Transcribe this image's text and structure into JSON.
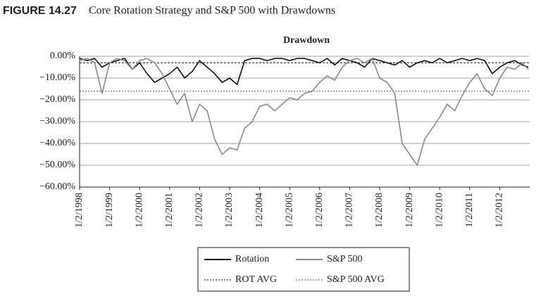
{
  "caption": {
    "label": "FIGURE 14.27",
    "text": "Core Rotation Strategy and S&P 500 with Drawdowns"
  },
  "chart_data": {
    "type": "line",
    "title": "Drawdown",
    "x": [
      1998,
      1998.25,
      1998.5,
      1998.75,
      1999,
      1999.25,
      1999.5,
      1999.75,
      2000,
      2000.25,
      2000.5,
      2000.75,
      2001,
      2001.25,
      2001.5,
      2001.75,
      2002,
      2002.25,
      2002.5,
      2002.75,
      2003,
      2003.25,
      2003.5,
      2003.75,
      2004,
      2004.25,
      2004.5,
      2004.75,
      2005,
      2005.25,
      2005.5,
      2005.75,
      2006,
      2006.25,
      2006.5,
      2006.75,
      2007,
      2007.25,
      2007.5,
      2007.75,
      2008,
      2008.25,
      2008.5,
      2008.75,
      2009,
      2009.25,
      2009.5,
      2009.75,
      2010,
      2010.25,
      2010.5,
      2010.75,
      2011,
      2011.25,
      2011.5,
      2011.75,
      2012,
      2012.25,
      2012.5,
      2012.75,
      2012.95
    ],
    "series": [
      {
        "name": "Rotation",
        "color": "#111111",
        "values": [
          -1,
          -2,
          -1,
          -5,
          -3,
          -2,
          -1,
          -6,
          -3,
          -8,
          -12,
          -10,
          -8,
          -5,
          -10,
          -7,
          -2,
          -5,
          -8,
          -12,
          -10,
          -13,
          -2,
          -1,
          -1,
          -2,
          -1,
          -1,
          -2,
          -1,
          -1,
          -2,
          -3,
          -1,
          -4,
          -1,
          -2,
          -3,
          -5,
          -1,
          -2,
          -3,
          -4,
          -2,
          -5,
          -3,
          -2,
          -3,
          -1,
          -3,
          -2,
          -1,
          -2,
          -1,
          -2,
          -8,
          -5,
          -3,
          -2,
          -4,
          -5
        ]
      },
      {
        "name": "S&P 500",
        "color": "#8a8a8a",
        "values": [
          -2,
          -1,
          -3,
          -17,
          -3,
          -1,
          -2,
          -6,
          -2,
          -1,
          -3,
          -8,
          -15,
          -22,
          -17,
          -30,
          -22,
          -25,
          -38,
          -45,
          -42,
          -43,
          -33,
          -30,
          -23,
          -22,
          -25,
          -22,
          -19,
          -20,
          -17,
          -16,
          -12,
          -9,
          -11,
          -5,
          -2,
          -1,
          -3,
          -1,
          -10,
          -12,
          -17,
          -40,
          -45,
          -50,
          -38,
          -33,
          -28,
          -22,
          -25,
          -18,
          -12,
          -8,
          -15,
          -18,
          -10,
          -5,
          -6,
          -3,
          -6
        ]
      }
    ],
    "reference_lines": [
      {
        "name": "ROT AVG",
        "value": -3,
        "color": "#111111"
      },
      {
        "name": "S&P 500 AVG",
        "value": -16,
        "color": "#555555"
      }
    ],
    "xlim": [
      1998,
      2013
    ],
    "xticks": [
      {
        "value": 1998,
        "label": "1/2/1998"
      },
      {
        "value": 1999,
        "label": "1/2/1999"
      },
      {
        "value": 2000,
        "label": "1/2/2000"
      },
      {
        "value": 2001,
        "label": "1/2/2001"
      },
      {
        "value": 2002,
        "label": "1/2/2002"
      },
      {
        "value": 2003,
        "label": "1/2/2003"
      },
      {
        "value": 2004,
        "label": "1/2/2004"
      },
      {
        "value": 2005,
        "label": "1/2/2005"
      },
      {
        "value": 2006,
        "label": "1/2/2006"
      },
      {
        "value": 2007,
        "label": "1/2/2007"
      },
      {
        "value": 2008,
        "label": "1/2/2008"
      },
      {
        "value": 2009,
        "label": "1/2/2009"
      },
      {
        "value": 2010,
        "label": "1/2/2010"
      },
      {
        "value": 2011,
        "label": "1/2/2011"
      },
      {
        "value": 2012,
        "label": "1/2/2012"
      }
    ],
    "ylim": [
      -60,
      0
    ],
    "yticks": [
      {
        "value": 0,
        "label": "0.00%"
      },
      {
        "value": -10,
        "label": "−10.00%"
      },
      {
        "value": -20,
        "label": "−20.00%"
      },
      {
        "value": -30,
        "label": "−30.00%"
      },
      {
        "value": -40,
        "label": "−40.00%"
      },
      {
        "value": -50,
        "label": "−50.00%"
      },
      {
        "value": -60,
        "label": "−60.00%"
      }
    ],
    "grid": true
  }
}
